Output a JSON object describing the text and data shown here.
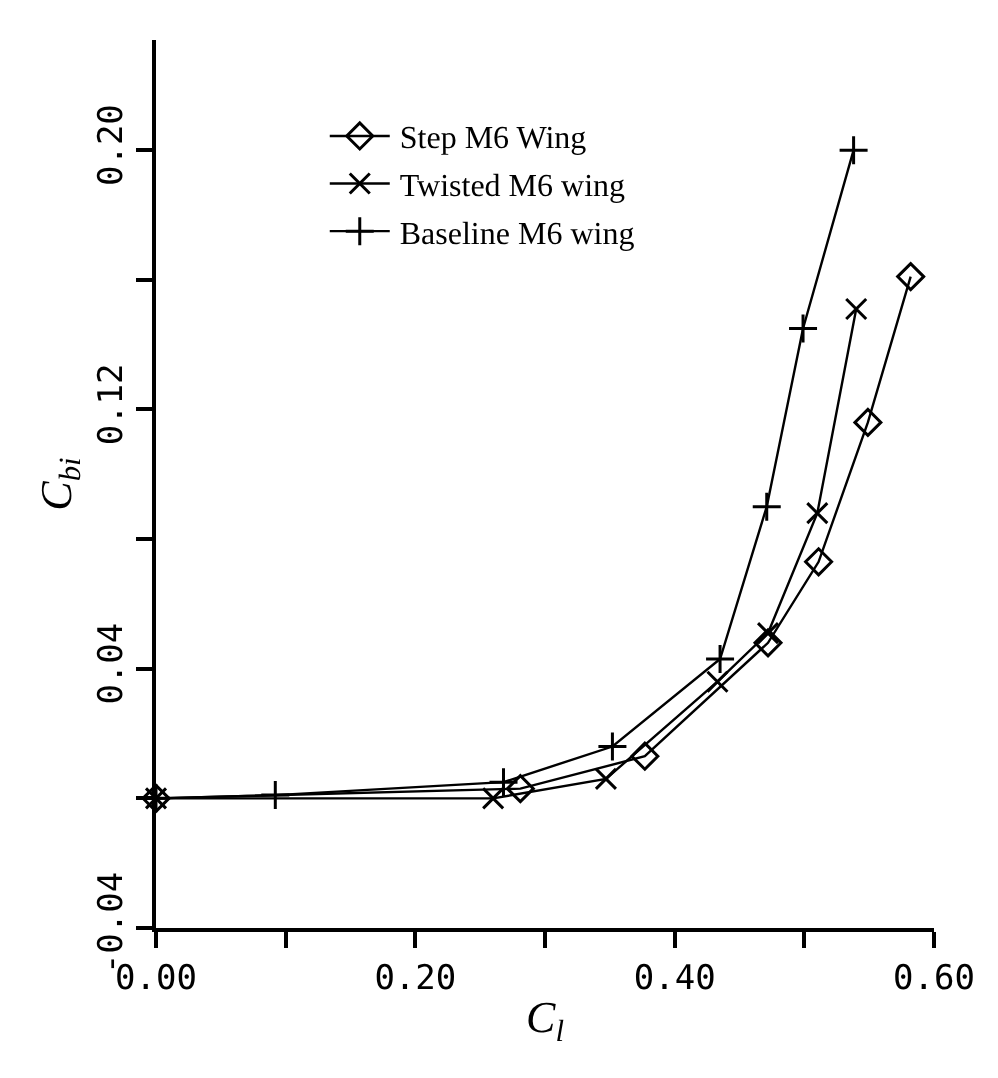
{
  "chart_data": {
    "type": "line",
    "xlabel": "C$_{l}$",
    "ylabel": "C$_{bi}$",
    "xlim": [
      0,
      0.6
    ],
    "xticks": [
      {
        "value": 0,
        "label": "0.00"
      },
      {
        "value": 0.1,
        "label": null
      },
      {
        "value": 0.2,
        "label": "0.20"
      },
      {
        "value": 0.3,
        "label": null
      },
      {
        "value": 0.4,
        "label": "0.40"
      },
      {
        "value": 0.5,
        "label": null
      },
      {
        "value": 0.6,
        "label": "0.60"
      }
    ],
    "ylim": [
      -0.04,
      0.234
    ],
    "yticks": [
      -0.04,
      {
        "value": 0,
        "label": null
      },
      0.04,
      {
        "value": 0.08,
        "label": null
      },
      0.12,
      {
        "value": 0.16,
        "label": null
      },
      {
        "value": 0.2,
        "label": "0.20"
      }
    ],
    "legend": "top",
    "line_style": "solid",
    "series": [
      {
        "name": "Step M6 Wing",
        "color": "#000000",
        "marker": "diamond",
        "x": [
          0,
          0.281,
          0.377,
          0.472,
          0.511,
          0.549,
          0.582
        ],
        "values": [
          0,
          0.003,
          0.013,
          0.048,
          0.073,
          0.116,
          0.161
        ]
      },
      {
        "name": "Twisted M6 wing",
        "color": "#000000",
        "marker": "cross",
        "x": [
          0,
          0.26,
          0.347,
          0.433,
          0.472,
          0.51,
          0.54
        ],
        "values": [
          0,
          0,
          0.006,
          0.036,
          0.051,
          0.088,
          0.151
        ]
      },
      {
        "name": "Baseline M6 wing",
        "color": "#000000",
        "marker": "plus",
        "x": [
          0,
          0.092,
          0.268,
          0.352,
          0.435,
          0.471,
          0.499,
          0.538
        ],
        "values": [
          0,
          0.001,
          0.005,
          0.016,
          0.043,
          0.09,
          0.145,
          0.2
        ]
      }
    ]
  }
}
